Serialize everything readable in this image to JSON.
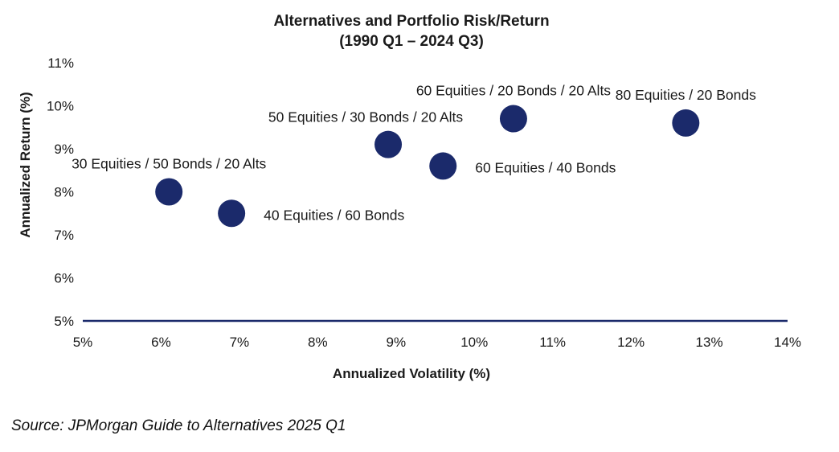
{
  "chart_data": {
    "type": "scatter",
    "title": [
      "Alternatives and Portfolio Risk/Return",
      "(1990 Q1 – 2024 Q3)"
    ],
    "xlabel": "Annualized Volatility (%)",
    "ylabel": "Annualized Return (%)",
    "xlim": [
      5,
      14
    ],
    "ylim": [
      5,
      11
    ],
    "x_ticks": [
      5,
      6,
      7,
      8,
      9,
      10,
      11,
      12,
      13,
      14
    ],
    "y_ticks": [
      5,
      6,
      7,
      8,
      9,
      10,
      11
    ],
    "x_tick_labels": [
      "5%",
      "6%",
      "7%",
      "8%",
      "9%",
      "10%",
      "11%",
      "12%",
      "13%",
      "14%"
    ],
    "y_tick_labels": [
      "5%",
      "6%",
      "7%",
      "8%",
      "9%",
      "10%",
      "11%"
    ],
    "grid": false,
    "marker_color": "#1b2a6b",
    "axis_color": "#1b2a6b",
    "points": [
      {
        "label": "30 Equities / 50 Bonds / 20 Alts",
        "x": 6.1,
        "y": 8.0,
        "label_pos": "above"
      },
      {
        "label": "40 Equities / 60 Bonds",
        "x": 6.9,
        "y": 7.5,
        "label_pos": "right"
      },
      {
        "label": "50 Equities / 30 Bonds / 20 Alts",
        "x": 8.9,
        "y": 9.1,
        "label_pos": "above-left"
      },
      {
        "label": "60 Equities / 40 Bonds",
        "x": 9.6,
        "y": 8.6,
        "label_pos": "right"
      },
      {
        "label": "60 Equities / 20 Bonds / 20 Alts",
        "x": 10.5,
        "y": 9.7,
        "label_pos": "above"
      },
      {
        "label": "80 Equities / 20 Bonds",
        "x": 12.7,
        "y": 9.6,
        "label_pos": "above"
      }
    ]
  },
  "source": "Source: JPMorgan Guide to Alternatives 2025 Q1"
}
